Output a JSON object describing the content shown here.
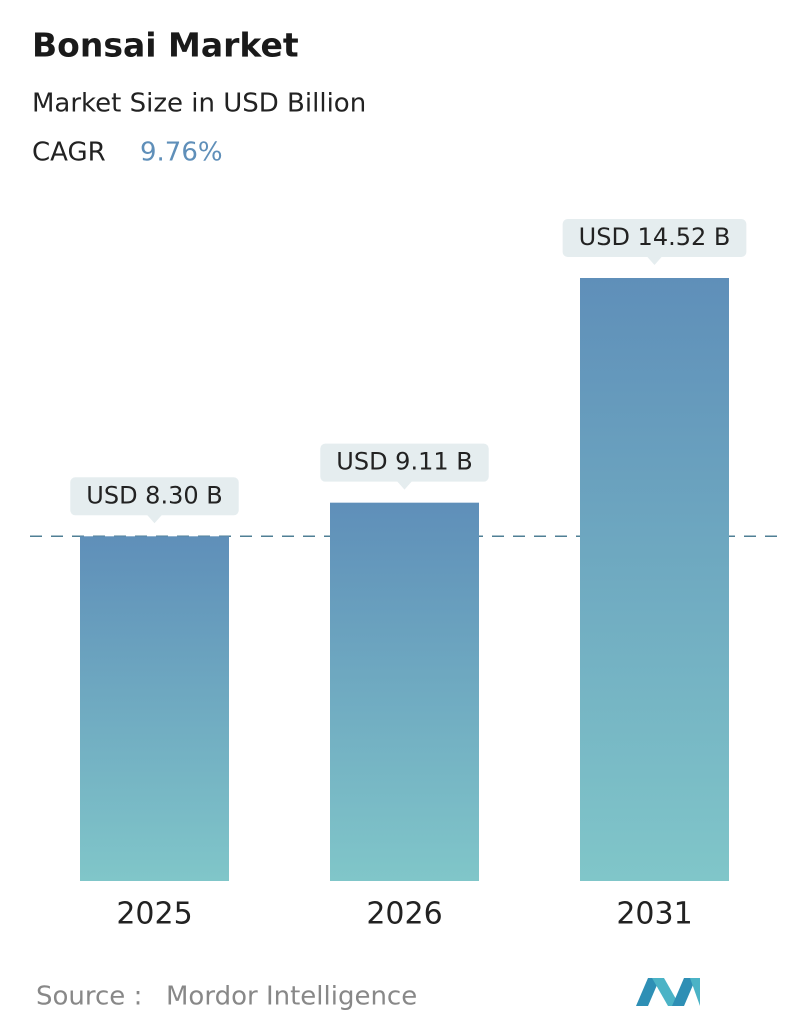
{
  "chart_data": {
    "type": "bar",
    "title": "Bonsai Market",
    "subtitle": "Market Size in USD Billion",
    "cagr": {
      "label": "CAGR",
      "value": "9.76%"
    },
    "categories": [
      "2025",
      "2026",
      "2031"
    ],
    "values": [
      8.3,
      9.11,
      14.52
    ],
    "value_labels": [
      "USD 8.30 B",
      "USD 9.11 B",
      "USD 14.52 B"
    ],
    "color_top": "#5f8fb9",
    "color_bottom": "#80c6c9",
    "source": {
      "label": "Source :",
      "name": "Mordor Intelligence"
    }
  }
}
